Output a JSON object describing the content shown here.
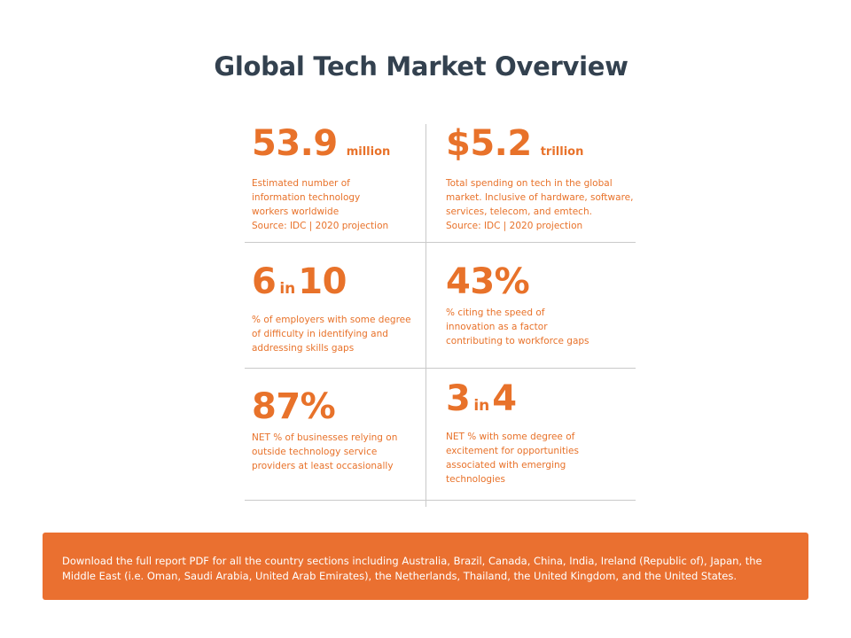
{
  "title": "Global Tech Market Overview",
  "accent_color": "#e8722a",
  "title_color": "#33414f",
  "stats": [
    {
      "value": "53.9",
      "unit": "million",
      "desc": [
        "Estimated number of",
        "information technology",
        "workers worldwide",
        "Source: IDC | 2020 projection"
      ]
    },
    {
      "value": "$5.2",
      "unit": "trillion",
      "desc": [
        "Total spending on tech in the global",
        "market. Inclusive of hardware, software,",
        "services, telecom, and emtech.",
        "Source: IDC | 2020 projection"
      ]
    },
    {
      "value_a": "6",
      "joiner": "in",
      "value_b": "10",
      "desc": [
        "% of employers with some degree",
        "of difficulty in identifying and",
        "addressing skills gaps"
      ]
    },
    {
      "value": "43%",
      "desc": [
        "% citing the speed of",
        "innovation as a factor",
        "contributing to workforce gaps"
      ]
    },
    {
      "value": "87%",
      "desc": [
        "NET % of businesses relying on",
        "outside technology service",
        "providers at least occasionally"
      ]
    },
    {
      "value_a": "3",
      "joiner": "in",
      "value_b": "4",
      "desc": [
        "NET % with some degree of",
        "excitement for opportunities",
        "associated with emerging",
        "technologies"
      ]
    }
  ],
  "banner": {
    "lines": [
      "Download the full report PDF for all the country sections including Australia, Brazil, Canada, China, India, Ireland (Republic of), Japan, the",
      "Middle East (i.e. Oman, Saudi Arabia, United Arab Emirates), the Netherlands, Thailand, the United Kingdom, and the United States."
    ]
  }
}
